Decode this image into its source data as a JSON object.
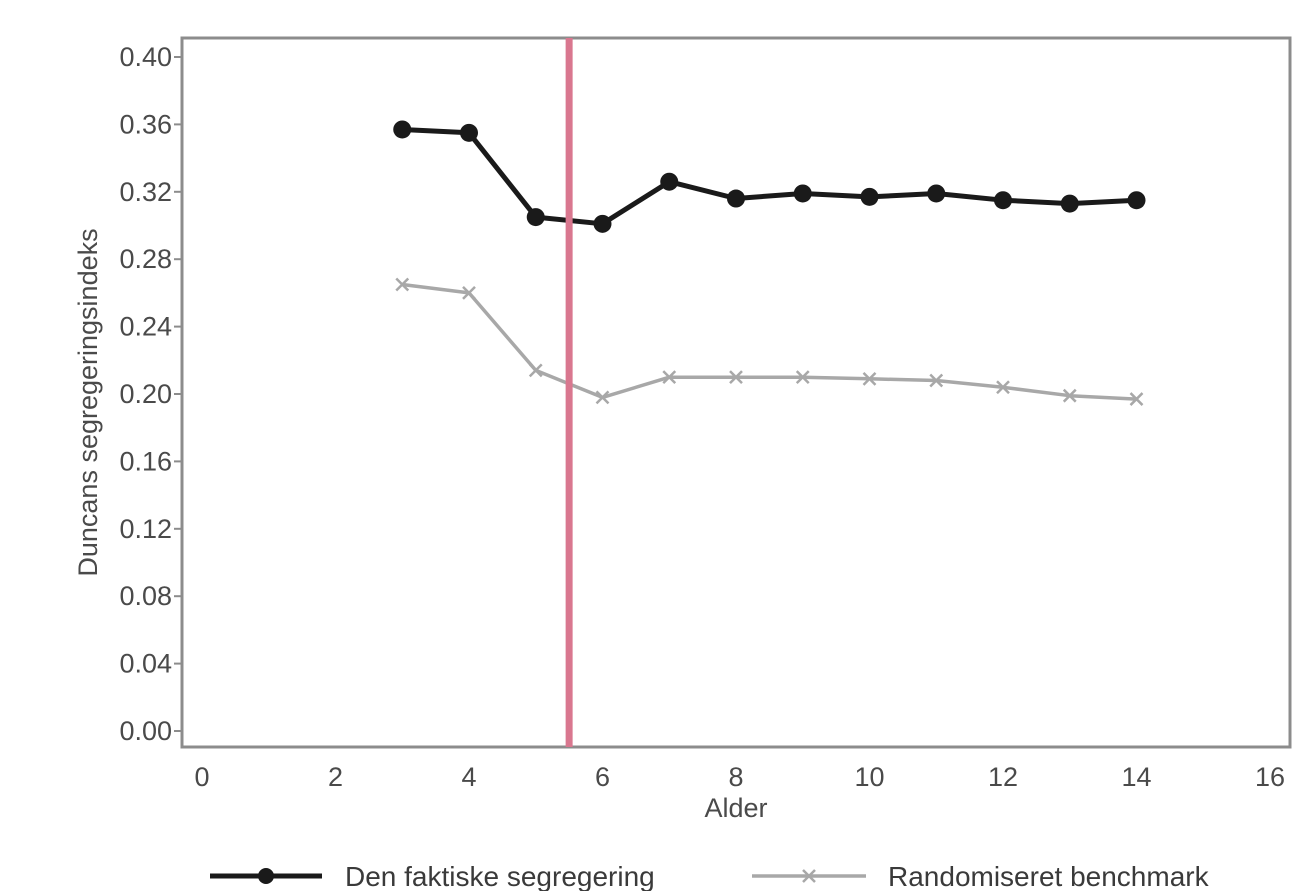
{
  "chart_data": {
    "type": "line",
    "xlabel": "Alder",
    "ylabel": "Duncans segregeringsindeks",
    "xlim": [
      0,
      16
    ],
    "ylim": [
      0,
      0.4
    ],
    "xticks": [
      0,
      2,
      4,
      6,
      8,
      10,
      12,
      14,
      16
    ],
    "yticks": [
      0.0,
      0.04,
      0.08,
      0.12,
      0.16,
      0.2,
      0.24,
      0.28,
      0.32,
      0.36,
      0.4
    ],
    "xtick_labels": [
      "0",
      "2",
      "4",
      "6",
      "8",
      "10",
      "12",
      "14",
      "16"
    ],
    "ytick_labels": [
      "0.00",
      "0.04",
      "0.08",
      "0.12",
      "0.16",
      "0.20",
      "0.24",
      "0.28",
      "0.32",
      "0.36",
      "0.40"
    ],
    "grid": false,
    "legend_position": "bottom",
    "vline": {
      "x": 5.5,
      "color": "#d9778f"
    },
    "series": [
      {
        "name": "Den faktiske segregering",
        "color": "#1a1a1a",
        "marker": "circle",
        "x": [
          3,
          4,
          5,
          6,
          7,
          8,
          9,
          10,
          11,
          12,
          13,
          14
        ],
        "y": [
          0.357,
          0.355,
          0.305,
          0.301,
          0.326,
          0.316,
          0.319,
          0.317,
          0.319,
          0.315,
          0.313,
          0.315
        ]
      },
      {
        "name": "Randomiseret benchmark",
        "color": "#a8a8a8",
        "marker": "x",
        "x": [
          3,
          4,
          5,
          6,
          7,
          8,
          9,
          10,
          11,
          12,
          13,
          14
        ],
        "y": [
          0.265,
          0.26,
          0.214,
          0.198,
          0.21,
          0.21,
          0.21,
          0.209,
          0.208,
          0.204,
          0.199,
          0.197
        ]
      }
    ]
  }
}
